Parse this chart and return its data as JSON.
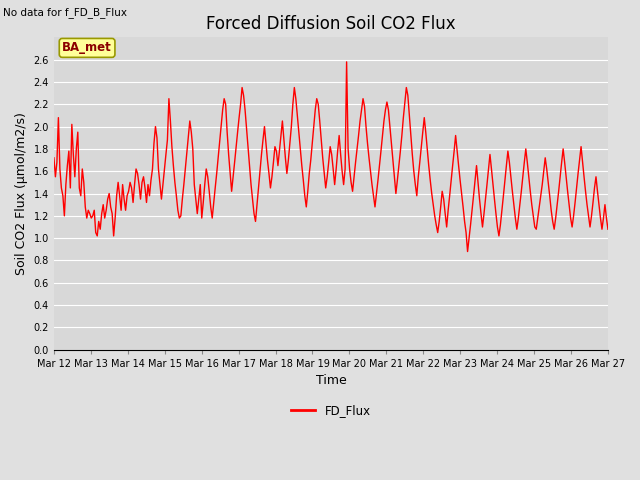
{
  "title": "Forced Diffusion Soil CO2 Flux",
  "no_data_label": "No data for f_FD_B_Flux",
  "xlabel": "Time",
  "ylabel": "Soil CO2 Flux (µmol/m2/s)",
  "ylim": [
    0.0,
    2.8
  ],
  "yticks": [
    0.0,
    0.2,
    0.4,
    0.6,
    0.8,
    1.0,
    1.2,
    1.4,
    1.6,
    1.8,
    2.0,
    2.2,
    2.4,
    2.6
  ],
  "xtick_labels": [
    "Mar 12",
    "Mar 13",
    "Mar 14",
    "Mar 15",
    "Mar 16",
    "Mar 17",
    "Mar 18",
    "Mar 19",
    "Mar 20",
    "Mar 21",
    "Mar 22",
    "Mar 23",
    "Mar 24",
    "Mar 25",
    "Mar 26",
    "Mar 27"
  ],
  "line_color": "#ff0000",
  "line_width": 1.0,
  "legend_label": "FD_Flux",
  "legend_line_color": "#ff0000",
  "bg_color": "#e0e0e0",
  "plot_bg_color": "#d8d8d8",
  "grid_color": "#ffffff",
  "ba_met_label": "BA_met",
  "ba_met_facecolor": "#ffff99",
  "ba_met_edgecolor": "#999900",
  "title_fontsize": 12,
  "axis_label_fontsize": 9,
  "tick_fontsize": 7,
  "n_days": 15,
  "flux_values": [
    1.72,
    1.55,
    1.68,
    2.08,
    1.62,
    1.45,
    1.38,
    1.2,
    1.48,
    1.65,
    1.78,
    1.45,
    2.02,
    1.75,
    1.55,
    1.8,
    1.95,
    1.45,
    1.38,
    1.62,
    1.5,
    1.28,
    1.18,
    1.25,
    1.22,
    1.18,
    1.2,
    1.25,
    1.05,
    1.02,
    1.15,
    1.08,
    1.22,
    1.3,
    1.18,
    1.25,
    1.35,
    1.4,
    1.28,
    1.22,
    1.02,
    1.18,
    1.38,
    1.5,
    1.38,
    1.25,
    1.48,
    1.35,
    1.25,
    1.38,
    1.42,
    1.5,
    1.45,
    1.32,
    1.48,
    1.62,
    1.58,
    1.48,
    1.35,
    1.5,
    1.55,
    1.45,
    1.32,
    1.48,
    1.38,
    1.52,
    1.62,
    1.85,
    2.0,
    1.9,
    1.62,
    1.48,
    1.35,
    1.48,
    1.62,
    1.75,
    1.88,
    2.25,
    2.05,
    1.82,
    1.65,
    1.5,
    1.38,
    1.25,
    1.18,
    1.2,
    1.35,
    1.48,
    1.62,
    1.75,
    1.9,
    2.05,
    1.95,
    1.8,
    1.48,
    1.35,
    1.22,
    1.35,
    1.48,
    1.18,
    1.32,
    1.48,
    1.62,
    1.55,
    1.42,
    1.28,
    1.18,
    1.32,
    1.45,
    1.58,
    1.72,
    1.85,
    2.0,
    2.15,
    2.25,
    2.2,
    1.95,
    1.75,
    1.58,
    1.42,
    1.55,
    1.68,
    1.82,
    1.95,
    2.08,
    2.2,
    2.35,
    2.28,
    2.15,
    1.98,
    1.82,
    1.65,
    1.48,
    1.35,
    1.22,
    1.15,
    1.3,
    1.45,
    1.6,
    1.75,
    1.88,
    2.0,
    1.85,
    1.7,
    1.58,
    1.45,
    1.55,
    1.68,
    1.82,
    1.78,
    1.65,
    1.78,
    1.92,
    2.05,
    1.88,
    1.72,
    1.58,
    1.7,
    1.85,
    2.0,
    2.2,
    2.35,
    2.25,
    2.1,
    1.95,
    1.8,
    1.65,
    1.52,
    1.38,
    1.28,
    1.42,
    1.58,
    1.7,
    1.85,
    2.0,
    2.15,
    2.25,
    2.2,
    2.05,
    1.88,
    1.72,
    1.58,
    1.45,
    1.55,
    1.68,
    1.82,
    1.75,
    1.62,
    1.48,
    1.62,
    1.78,
    1.92,
    1.75,
    1.6,
    1.48,
    1.62,
    2.58,
    1.8,
    1.62,
    1.5,
    1.42,
    1.55,
    1.68,
    1.8,
    1.92,
    2.05,
    2.15,
    2.25,
    2.18,
    2.0,
    1.85,
    1.72,
    1.6,
    1.48,
    1.38,
    1.28,
    1.4,
    1.52,
    1.65,
    1.78,
    1.92,
    2.05,
    2.15,
    2.22,
    2.15,
    2.0,
    1.85,
    1.7,
    1.55,
    1.4,
    1.52,
    1.65,
    1.78,
    1.92,
    2.08,
    2.22,
    2.35,
    2.28,
    2.1,
    1.92,
    1.75,
    1.6,
    1.48,
    1.38,
    1.55,
    1.68,
    1.82,
    1.95,
    2.08,
    1.95,
    1.8,
    1.65,
    1.52,
    1.4,
    1.3,
    1.2,
    1.12,
    1.05,
    1.15,
    1.28,
    1.42,
    1.35,
    1.22,
    1.1,
    1.25,
    1.38,
    1.52,
    1.65,
    1.78,
    1.92,
    1.78,
    1.65,
    1.52,
    1.4,
    1.28,
    1.15,
    1.05,
    0.88,
    1.0,
    1.12,
    1.25,
    1.38,
    1.52,
    1.65,
    1.5,
    1.35,
    1.22,
    1.1,
    1.22,
    1.35,
    1.48,
    1.62,
    1.75,
    1.62,
    1.48,
    1.35,
    1.22,
    1.1,
    1.02,
    1.12,
    1.25,
    1.38,
    1.52,
    1.65,
    1.78,
    1.68,
    1.55,
    1.42,
    1.3,
    1.18,
    1.08,
    1.18,
    1.3,
    1.42,
    1.55,
    1.68,
    1.8,
    1.68,
    1.55,
    1.42,
    1.3,
    1.2,
    1.1,
    1.08,
    1.18,
    1.28,
    1.38,
    1.48,
    1.6,
    1.72,
    1.62,
    1.5,
    1.38,
    1.25,
    1.15,
    1.08,
    1.18,
    1.3,
    1.42,
    1.55,
    1.68,
    1.8,
    1.68,
    1.55,
    1.42,
    1.3,
    1.18,
    1.1,
    1.2,
    1.32,
    1.45,
    1.58,
    1.7,
    1.82,
    1.68,
    1.55,
    1.42,
    1.3,
    1.2,
    1.1,
    1.2,
    1.32,
    1.45,
    1.55,
    1.42,
    1.3,
    1.18,
    1.08,
    1.18,
    1.3,
    1.18,
    1.08
  ]
}
